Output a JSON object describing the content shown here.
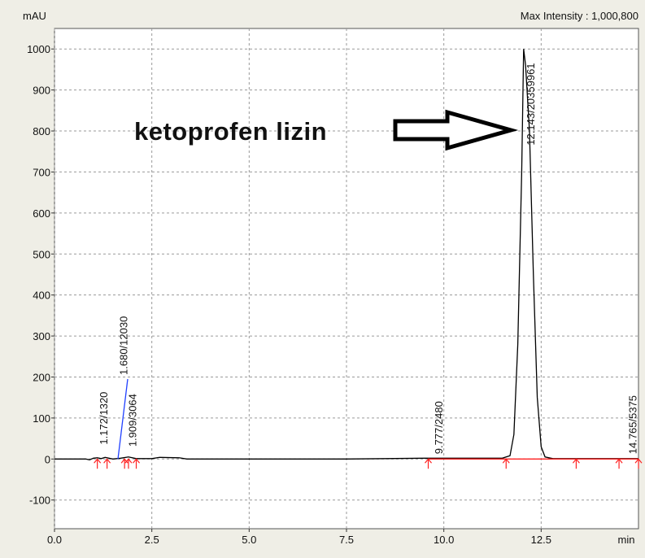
{
  "chart_data": {
    "type": "line",
    "title": "Max Intensity : 1,000,800",
    "y_label": "mAU",
    "x_label": "min",
    "annotation": "ketoprofen lizin",
    "xlim": [
      0,
      15
    ],
    "ylim": [
      -170,
      1050
    ],
    "xticks": [
      {
        "value": 0,
        "label": "0.0"
      },
      2.5,
      {
        "value": 5,
        "label": "5.0"
      },
      7.5,
      {
        "value": 10,
        "label": "10.0"
      },
      12.5
    ],
    "yticks": [
      -100,
      0,
      100,
      200,
      300,
      400,
      500,
      600,
      700,
      800,
      900,
      1000
    ],
    "grid": true,
    "series": [
      {
        "color": "#000000",
        "x": [
          0,
          0.8,
          0.9,
          1.0,
          1.1,
          1.2,
          1.3,
          1.5,
          1.7,
          1.9,
          2.1,
          2.5,
          2.7,
          3.2,
          3.4,
          7.5,
          9.5,
          11.5,
          11.7,
          11.8,
          11.9,
          12.0,
          12.05,
          12.1,
          12.2,
          12.3,
          12.4,
          12.5,
          12.6,
          12.8,
          15
        ],
        "values": [
          0,
          0,
          -2,
          2,
          3,
          1,
          4,
          0,
          2,
          5,
          1,
          1,
          4,
          3,
          0,
          0,
          2,
          2,
          8,
          60,
          280,
          700,
          1000,
          960,
          800,
          450,
          150,
          30,
          5,
          1,
          1
        ]
      },
      {
        "color": "#2040ff",
        "x": [
          1.63,
          1.88
        ],
        "values": [
          0,
          195
        ]
      },
      {
        "color": "#ff2020",
        "x": [
          9.6,
          15
        ],
        "values": [
          0,
          0
        ]
      }
    ],
    "peaks": [
      {
        "label": "1.172/1320",
        "time": 1.172,
        "height": 35
      },
      {
        "label": "1.680/12030",
        "time": 1.68,
        "height": 205
      },
      {
        "label": "1.909/3064",
        "time": 1.909,
        "height": 30
      },
      {
        "label": "9.777/2480",
        "time": 9.777,
        "height": 12
      },
      {
        "label": "12.143/20359961",
        "time": 12.143,
        "height": 765
      },
      {
        "label": "14.765/5375",
        "time": 14.765,
        "height": 12
      }
    ],
    "integration_marks": [
      1.1,
      1.35,
      1.8,
      1.9,
      2.1,
      9.6,
      11.6,
      13.4,
      14.5,
      15
    ]
  }
}
